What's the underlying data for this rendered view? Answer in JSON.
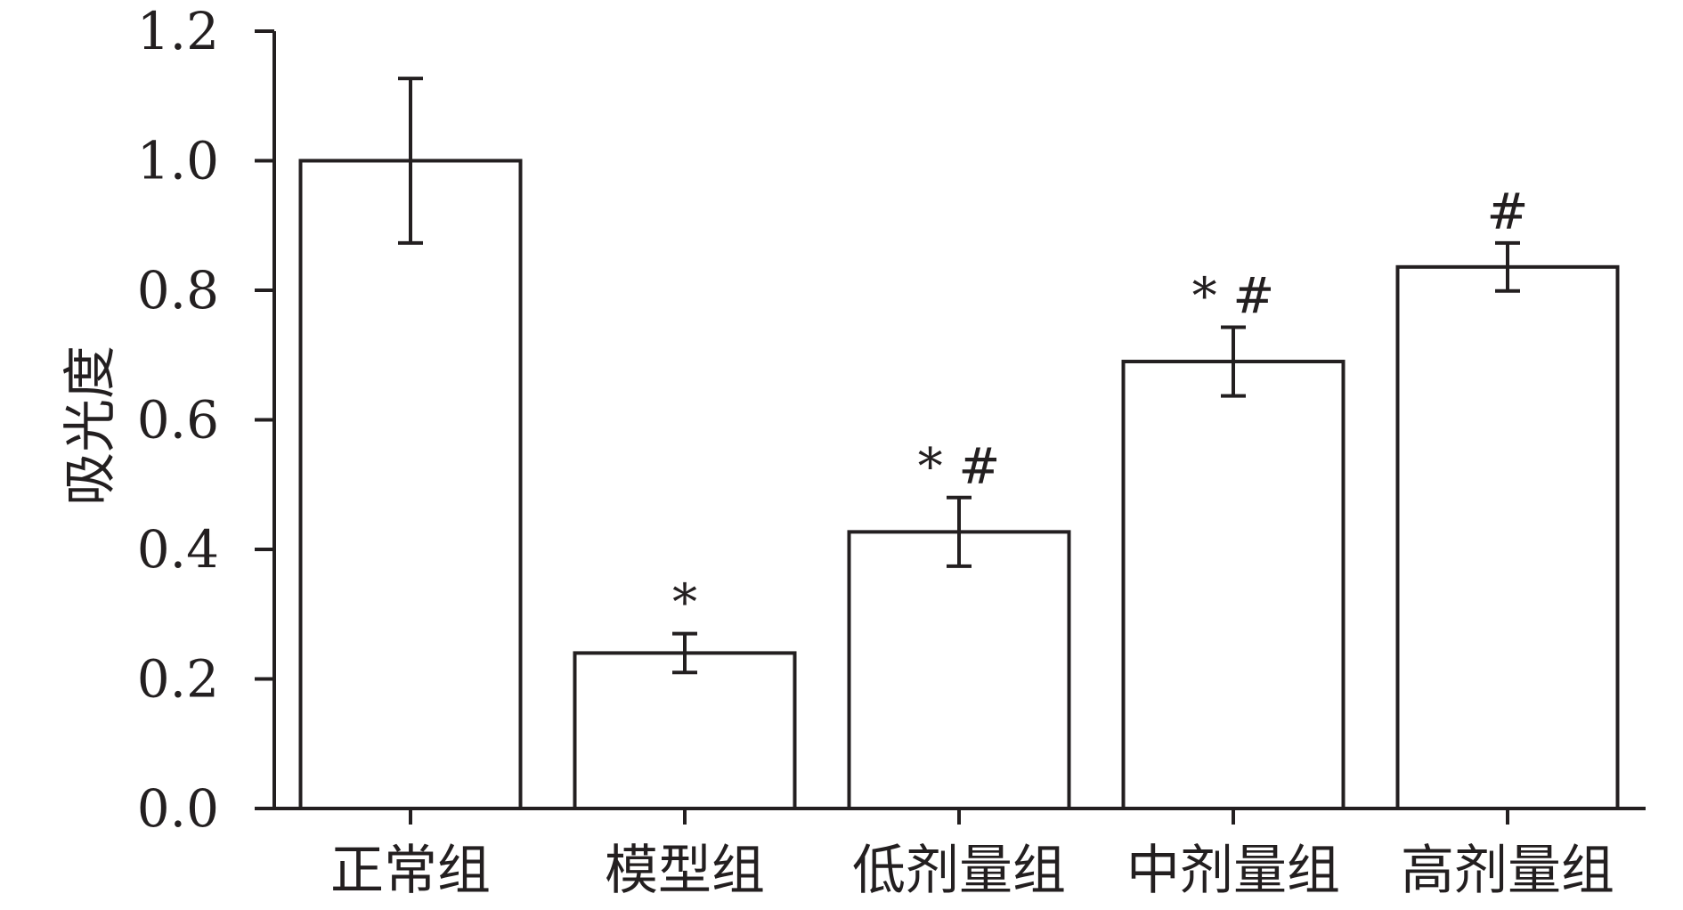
{
  "chart_data": {
    "type": "bar",
    "title": "",
    "xlabel": "",
    "ylabel": "吸光度",
    "ylim": [
      0,
      1.2
    ],
    "yticks": [
      "0.0",
      "0.2",
      "0.4",
      "0.6",
      "0.8",
      "1.0",
      "1.2"
    ],
    "categories": [
      "正常组",
      "模型组",
      "低剂量组",
      "中剂量组",
      "高剂量组"
    ],
    "values": [
      1.0,
      0.24,
      0.427,
      0.69,
      0.836
    ],
    "errors": [
      0.127,
      0.03,
      0.053,
      0.053,
      0.037
    ],
    "annotations": [
      "",
      "*",
      "* #",
      "* #",
      "#"
    ],
    "grid": false,
    "bar_fill": "#ffffff",
    "bar_stroke": "#231f20"
  }
}
